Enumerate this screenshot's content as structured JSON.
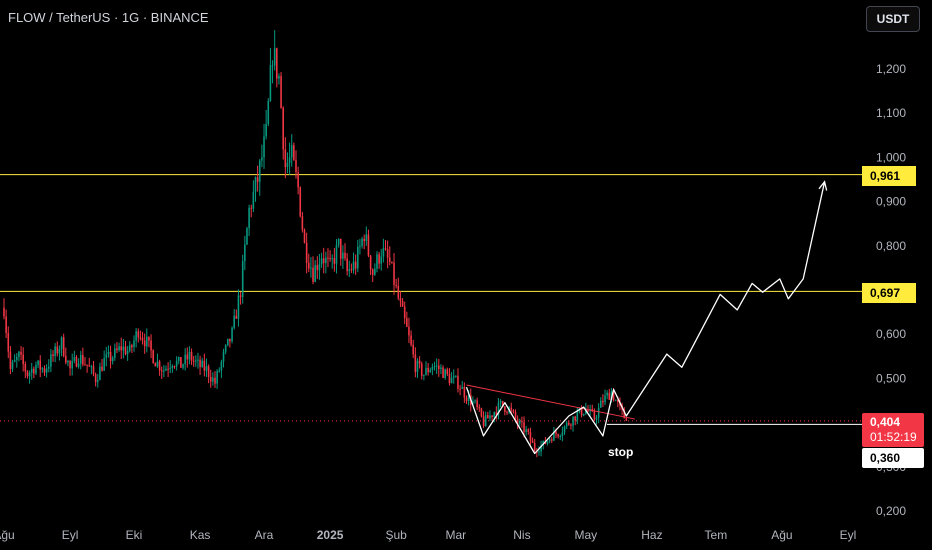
{
  "header": {
    "symbol_line": "FLOW / TetherUS · 1G · BINANCE",
    "currency_button": "USDT"
  },
  "chart_data": {
    "type": "candlestick",
    "y_axis": {
      "ticks": [
        "1,200",
        "1,100",
        "1,000",
        "0,900",
        "0,800",
        "0,700",
        "0,600",
        "0,500",
        "0,300",
        "0,200"
      ],
      "tick_values": [
        1.2,
        1.1,
        1.0,
        0.9,
        0.8,
        0.7,
        0.6,
        0.5,
        0.3,
        0.2
      ],
      "range": [
        0.18,
        1.31
      ]
    },
    "x_axis": {
      "labels": [
        "Ağu",
        "Eyl",
        "Eki",
        "Kas",
        "Ara",
        "2025",
        "Şub",
        "Mar",
        "Nis",
        "May",
        "Haz",
        "Tem",
        "Ağu",
        "Eyl"
      ],
      "dates": [
        "2024-08-01",
        "2024-09-01",
        "2024-10-01",
        "2024-11-01",
        "2024-12-01",
        "2025-01-01",
        "2025-02-01",
        "2025-03-01",
        "2025-04-01",
        "2025-05-01",
        "2025-06-01",
        "2025-07-01",
        "2025-08-01",
        "2025-09-01"
      ]
    },
    "colors": {
      "up": "#089981",
      "down": "#f23645",
      "level": "#ffeb3b",
      "price": "#f23645",
      "drawing": "#ffffff"
    },
    "price_close_path": [
      [
        "2024-08-01",
        0.66
      ],
      [
        "2024-08-04",
        0.52
      ],
      [
        "2024-08-08",
        0.55
      ],
      [
        "2024-08-12",
        0.51
      ],
      [
        "2024-08-16",
        0.53
      ],
      [
        "2024-08-20",
        0.52
      ],
      [
        "2024-08-24",
        0.55
      ],
      [
        "2024-08-28",
        0.58
      ],
      [
        "2024-09-01",
        0.52
      ],
      [
        "2024-09-05",
        0.55
      ],
      [
        "2024-09-09",
        0.53
      ],
      [
        "2024-09-13",
        0.5
      ],
      [
        "2024-09-17",
        0.54
      ],
      [
        "2024-09-21",
        0.55
      ],
      [
        "2024-09-25",
        0.57
      ],
      [
        "2024-09-29",
        0.56
      ],
      [
        "2024-10-03",
        0.61
      ],
      [
        "2024-10-07",
        0.58
      ],
      [
        "2024-10-11",
        0.54
      ],
      [
        "2024-10-15",
        0.52
      ],
      [
        "2024-10-19",
        0.54
      ],
      [
        "2024-10-23",
        0.53
      ],
      [
        "2024-10-27",
        0.55
      ],
      [
        "2024-10-31",
        0.53
      ],
      [
        "2024-11-04",
        0.52
      ],
      [
        "2024-11-08",
        0.49
      ],
      [
        "2024-11-12",
        0.55
      ],
      [
        "2024-11-16",
        0.6
      ],
      [
        "2024-11-20",
        0.7
      ],
      [
        "2024-11-24",
        0.88
      ],
      [
        "2024-11-28",
        0.95
      ],
      [
        "2024-12-02",
        1.05
      ],
      [
        "2024-12-05",
        1.24
      ],
      [
        "2024-12-08",
        1.18
      ],
      [
        "2024-12-11",
        0.98
      ],
      [
        "2024-12-14",
        1.0
      ],
      [
        "2024-12-17",
        0.93
      ],
      [
        "2024-12-20",
        0.8
      ],
      [
        "2024-12-24",
        0.74
      ],
      [
        "2024-12-28",
        0.78
      ],
      [
        "2025-01-01",
        0.75
      ],
      [
        "2025-01-05",
        0.8
      ],
      [
        "2025-01-09",
        0.74
      ],
      [
        "2025-01-13",
        0.76
      ],
      [
        "2025-01-17",
        0.83
      ],
      [
        "2025-01-21",
        0.74
      ],
      [
        "2025-01-25",
        0.79
      ],
      [
        "2025-01-29",
        0.76
      ],
      [
        "2025-02-02",
        0.68
      ],
      [
        "2025-02-06",
        0.61
      ],
      [
        "2025-02-10",
        0.53
      ],
      [
        "2025-02-14",
        0.51
      ],
      [
        "2025-02-18",
        0.53
      ],
      [
        "2025-02-22",
        0.52
      ],
      [
        "2025-02-26",
        0.5
      ],
      [
        "2025-03-02",
        0.49
      ],
      [
        "2025-03-06",
        0.46
      ],
      [
        "2025-03-10",
        0.44
      ],
      [
        "2025-03-14",
        0.4
      ],
      [
        "2025-03-18",
        0.42
      ],
      [
        "2025-03-22",
        0.44
      ],
      [
        "2025-03-26",
        0.43
      ],
      [
        "2025-03-30",
        0.4
      ],
      [
        "2025-04-03",
        0.38
      ],
      [
        "2025-04-07",
        0.34
      ],
      [
        "2025-04-11",
        0.35
      ],
      [
        "2025-04-15",
        0.37
      ],
      [
        "2025-04-19",
        0.38
      ],
      [
        "2025-04-23",
        0.4
      ],
      [
        "2025-04-27",
        0.42
      ],
      [
        "2025-05-01",
        0.43
      ],
      [
        "2025-05-05",
        0.41
      ],
      [
        "2025-05-09",
        0.45
      ],
      [
        "2025-05-13",
        0.47
      ],
      [
        "2025-05-17",
        0.43
      ],
      [
        "2025-05-20",
        0.404
      ]
    ],
    "horizontal_levels": [
      {
        "price": 0.961,
        "label": "0,961"
      },
      {
        "price": 0.697,
        "label": "0,697"
      }
    ],
    "current_price": {
      "value": 0.404,
      "label": "0,404",
      "countdown": "01:52:19"
    },
    "stop_level": {
      "value": 0.36,
      "label": "0,360",
      "annotation": "stop"
    },
    "trendline": [
      [
        "2025-03-06",
        0.485
      ],
      [
        "2025-05-24",
        0.408
      ]
    ],
    "pattern_path": [
      [
        "2025-03-06",
        0.48
      ],
      [
        "2025-03-14",
        0.37
      ],
      [
        "2025-03-24",
        0.445
      ],
      [
        "2025-04-07",
        0.33
      ],
      [
        "2025-04-23",
        0.415
      ],
      [
        "2025-04-30",
        0.435
      ],
      [
        "2025-05-09",
        0.37
      ],
      [
        "2025-05-14",
        0.475
      ],
      [
        "2025-05-20",
        0.415
      ],
      [
        "2025-06-08",
        0.555
      ],
      [
        "2025-06-15",
        0.525
      ],
      [
        "2025-07-03",
        0.69
      ],
      [
        "2025-07-11",
        0.655
      ],
      [
        "2025-07-18",
        0.715
      ],
      [
        "2025-07-23",
        0.695
      ],
      [
        "2025-07-31",
        0.725
      ],
      [
        "2025-08-04",
        0.68
      ],
      [
        "2025-08-11",
        0.725
      ],
      [
        "2025-08-21",
        0.945
      ]
    ]
  }
}
